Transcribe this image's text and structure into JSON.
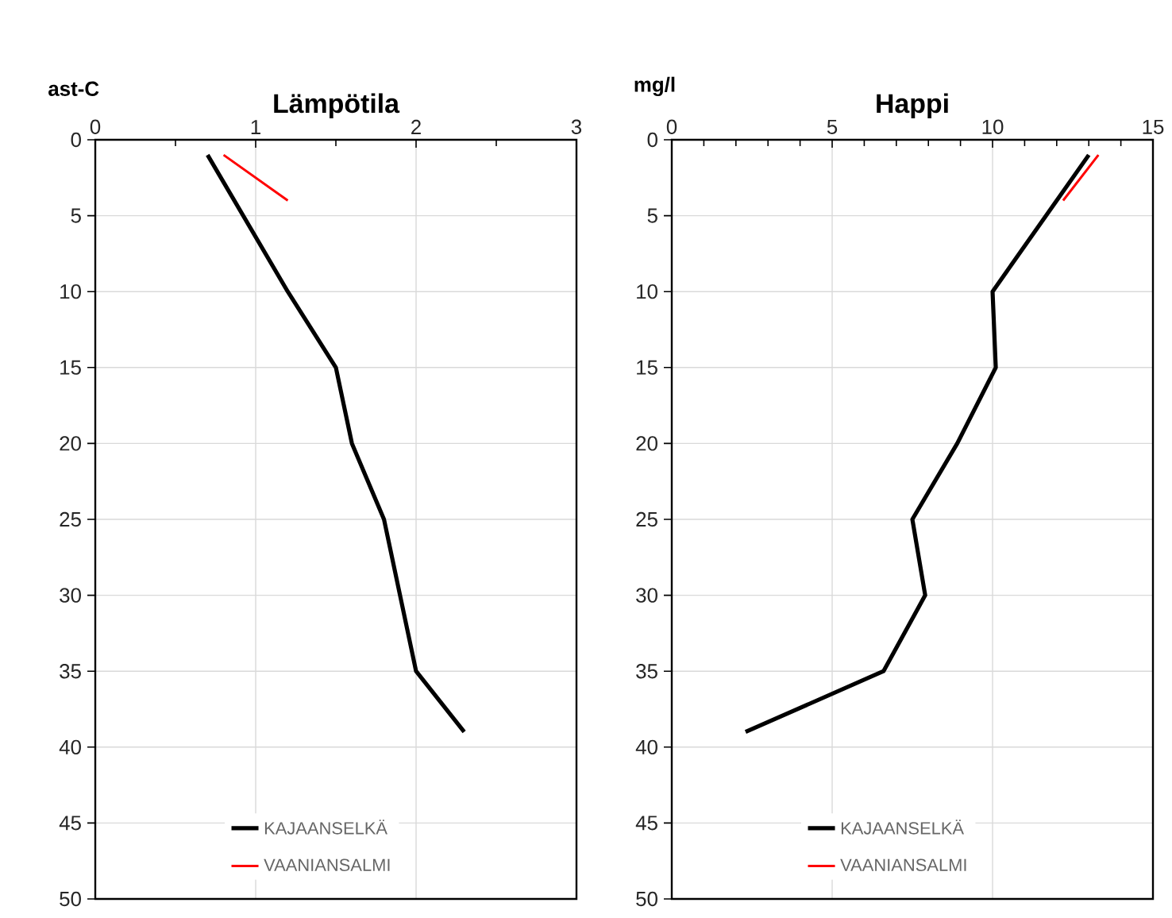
{
  "chart_data": [
    {
      "type": "line",
      "title": "Lämpötila",
      "xlabel": "ast-C",
      "xlim": [
        0,
        3
      ],
      "ylim": [
        50,
        0
      ],
      "xticks": [
        0,
        {
          "value": 0.5,
          "label": null
        },
        1,
        {
          "value": 1.5,
          "label": null
        },
        2,
        {
          "value": 2.5,
          "label": null
        },
        3
      ],
      "yticks": [
        0,
        5,
        10,
        15,
        20,
        25,
        30,
        35,
        40,
        45,
        50
      ],
      "grid": true,
      "legend": "bottom",
      "marker": "none",
      "series": [
        {
          "name": "KAJAANSELKÄ",
          "color": "#000000",
          "x": [
            0.7,
            1.2,
            1.5,
            1.6,
            1.8,
            2.0,
            2.3
          ],
          "values": [
            1,
            10,
            15,
            20,
            25,
            35,
            39
          ]
        },
        {
          "name": "VAANIANSALMI",
          "color": "#ff0000",
          "x": [
            0.8,
            1.2
          ],
          "values": [
            1,
            4
          ]
        }
      ]
    },
    {
      "type": "line",
      "title": "Happi",
      "xlabel": "mg/l",
      "xlim": [
        0,
        15
      ],
      "ylim": [
        50,
        0
      ],
      "xticks": [
        0,
        {
          "value": 1,
          "label": null
        },
        {
          "value": 2,
          "label": null
        },
        {
          "value": 3,
          "label": null
        },
        {
          "value": 4,
          "label": null
        },
        5,
        {
          "value": 6,
          "label": null
        },
        {
          "value": 7,
          "label": null
        },
        {
          "value": 8,
          "label": null
        },
        {
          "value": 9,
          "label": null
        },
        10,
        {
          "value": 11,
          "label": null
        },
        {
          "value": 12,
          "label": null
        },
        {
          "value": 13,
          "label": null
        },
        {
          "value": 14,
          "label": null
        },
        15
      ],
      "yticks": [
        0,
        5,
        10,
        15,
        20,
        25,
        30,
        35,
        40,
        45,
        50
      ],
      "grid": true,
      "legend": "bottom",
      "marker": "none",
      "series": [
        {
          "name": "KAJAANSELKÄ",
          "color": "#000000",
          "x": [
            13.0,
            10.0,
            10.1,
            8.9,
            7.5,
            7.9,
            6.6,
            2.3
          ],
          "values": [
            1,
            10,
            15,
            20,
            25,
            30,
            35,
            39
          ]
        },
        {
          "name": "VAANIANSALMI",
          "color": "#ff0000",
          "x": [
            13.3,
            12.2
          ],
          "values": [
            1,
            4
          ]
        }
      ]
    }
  ]
}
